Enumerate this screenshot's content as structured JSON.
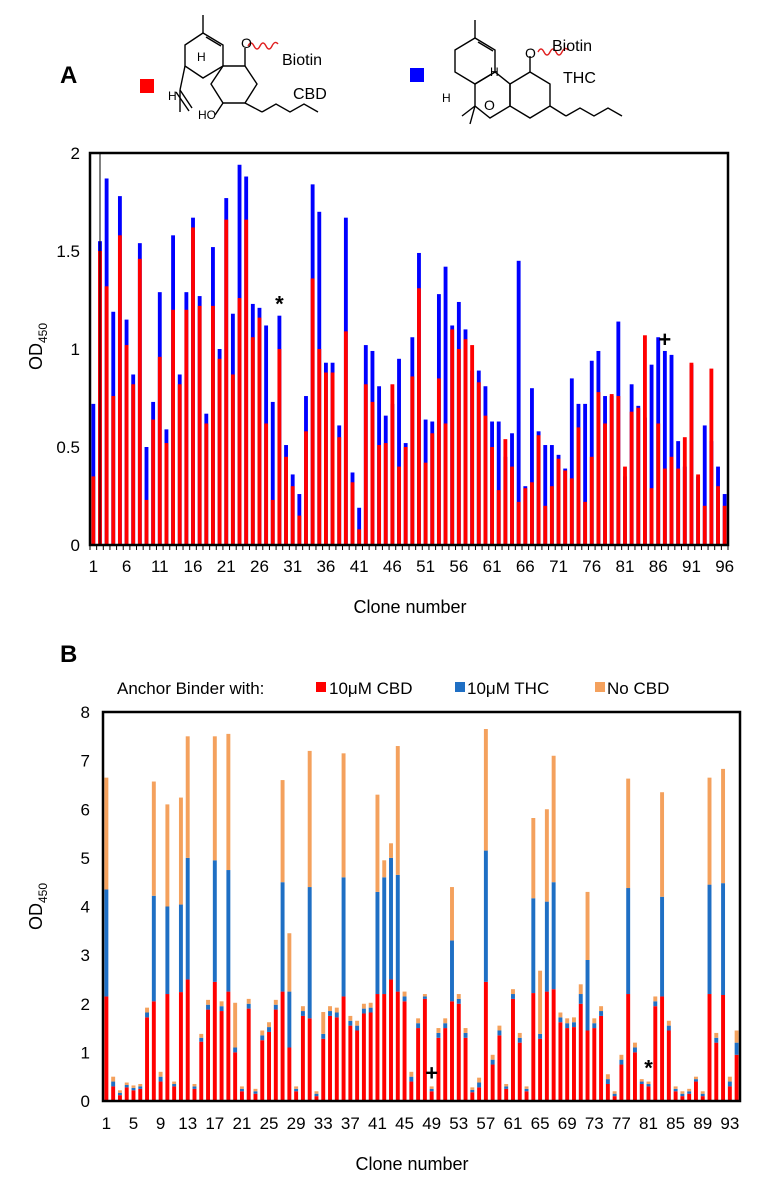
{
  "panel_a": {
    "label": "A",
    "structures": [
      {
        "name": "CBD",
        "tag": "Biotin",
        "color": "#ff0000"
      },
      {
        "name": "THC",
        "tag": "Biotin",
        "color": "#0000ff"
      }
    ],
    "atoms": {
      "o": "O",
      "ho": "HO",
      "h": "H"
    }
  },
  "panel_b": {
    "label": "B",
    "legend_title": "Anchor Binder with:",
    "markers": {
      "star": "*",
      "plus": "+"
    }
  },
  "chart_data": [
    {
      "type": "bar",
      "panel": "A",
      "title": "",
      "xlabel": "Clone number",
      "ylabel": "OD",
      "ylabel_sub": "450",
      "ylim": [
        0,
        2
      ],
      "yticks": [
        "0",
        "0.5",
        "1",
        "1.5",
        "2"
      ],
      "xticks": [
        "1",
        "6",
        "11",
        "16",
        "21",
        "26",
        "31",
        "36",
        "41",
        "46",
        "51",
        "56",
        "61",
        "66",
        "71",
        "76",
        "81",
        "86",
        "91",
        "96"
      ],
      "colors": {
        "CBD": "#ff0000",
        "THC": "#0000ff"
      },
      "annotations": [
        {
          "text": "*",
          "clone": 29
        },
        {
          "text": "+",
          "clone": 87
        }
      ],
      "cbd": [
        0.35,
        1.5,
        1.32,
        0.76,
        1.58,
        1.02,
        0.82,
        1.46,
        0.23,
        0.64,
        0.96,
        0.52,
        1.2,
        0.82,
        1.2,
        1.62,
        1.22,
        0.62,
        1.22,
        0.95,
        1.66,
        0.87,
        1.26,
        1.66,
        1.06,
        1.16,
        0.62,
        0.23,
        1.0,
        0.45,
        0.3,
        0.15,
        0.58,
        1.36,
        1.0,
        0.88,
        0.88,
        0.55,
        1.09,
        0.32,
        0.08,
        0.82,
        0.73,
        0.51,
        0.52,
        0.82,
        0.4,
        0.5,
        0.86,
        1.31,
        0.42,
        0.57,
        0.85,
        0.62,
        1.1,
        1.0,
        1.05,
        1.02,
        0.83,
        0.66,
        0.5,
        0.28,
        0.54,
        0.4,
        0.22,
        0.29,
        0.32,
        0.56,
        0.2,
        0.3,
        0.44,
        0.38,
        0.34,
        0.6,
        0.22,
        0.45,
        0.78,
        0.62,
        0.77,
        0.76,
        0.4,
        0.68,
        0.7,
        1.07,
        0.29,
        0.62,
        0.39,
        0.45,
        0.39,
        0.55,
        0.93,
        0.36,
        0.2,
        0.9,
        0.3,
        0.2
      ],
      "thc": [
        0.72,
        1.55,
        1.87,
        1.19,
        1.78,
        1.15,
        0.87,
        1.54,
        0.5,
        0.73,
        1.29,
        0.59,
        1.58,
        0.87,
        1.29,
        1.67,
        1.27,
        0.67,
        1.52,
        1.0,
        1.77,
        1.18,
        1.94,
        1.88,
        1.23,
        1.21,
        1.12,
        0.73,
        1.17,
        0.51,
        0.36,
        0.26,
        0.76,
        1.84,
        1.7,
        0.93,
        0.93,
        0.61,
        1.67,
        0.37,
        0.19,
        1.02,
        0.99,
        0.81,
        0.66,
        0.72,
        0.95,
        0.52,
        1.06,
        1.49,
        0.64,
        0.63,
        1.28,
        1.42,
        1.12,
        1.24,
        1.1,
        0.89,
        0.89,
        0.81,
        0.63,
        0.63,
        0.45,
        0.57,
        1.45,
        0.3,
        0.8,
        0.58,
        0.51,
        0.51,
        0.46,
        0.39,
        0.85,
        0.72,
        0.72,
        0.94,
        0.99,
        0.76,
        0.76,
        1.14,
        0.35,
        0.82,
        0.71,
        0.65,
        0.92,
        1.06,
        0.99,
        0.97,
        0.53,
        0.4,
        0.92,
        0.35,
        0.61,
        0.53,
        0.4,
        0.26
      ]
    },
    {
      "type": "bar",
      "panel": "B",
      "title": "",
      "xlabel": "Clone number",
      "ylabel": "OD",
      "ylabel_sub": "450",
      "ylim": [
        0,
        8
      ],
      "yticks": [
        "0",
        "1",
        "2",
        "3",
        "4",
        "5",
        "6",
        "7",
        "8"
      ],
      "xticks": [
        "1",
        "5",
        "9",
        "13",
        "17",
        "21",
        "25",
        "29",
        "33",
        "37",
        "41",
        "45",
        "49",
        "53",
        "57",
        "61",
        "65",
        "69",
        "73",
        "77",
        "81",
        "85",
        "89",
        "93"
      ],
      "annotations": [
        {
          "text": "+",
          "clone": 49
        },
        {
          "text": "*",
          "clone": 81
        }
      ],
      "series": [
        {
          "name": "10μM CBD",
          "color": "#ff0000",
          "values": [
            2.15,
            0.3,
            0.12,
            0.28,
            0.22,
            0.25,
            1.72,
            2.05,
            0.4,
            2.2,
            0.3,
            2.24,
            2.5,
            0.25,
            1.22,
            1.88,
            2.45,
            1.85,
            2.25,
            1.0,
            0.2,
            1.9,
            0.15,
            1.25,
            1.42,
            1.88,
            2.25,
            1.1,
            0.2,
            1.75,
            1.7,
            0.1,
            1.28,
            1.75,
            1.72,
            2.15,
            1.55,
            1.45,
            1.8,
            1.82,
            2.2,
            2.2,
            2.5,
            2.25,
            2.05,
            0.4,
            1.5,
            2.1,
            0.2,
            1.3,
            1.5,
            2.05,
            2.0,
            1.3,
            0.18,
            0.28,
            2.45,
            0.75,
            1.35,
            0.25,
            2.1,
            1.2,
            0.2,
            2.22,
            1.28,
            2.25,
            2.3,
            1.62,
            1.5,
            1.52,
            2.0,
            1.45,
            1.5,
            1.75,
            0.35,
            0.1,
            0.75,
            2.2,
            1.0,
            0.35,
            0.3,
            1.95,
            2.15,
            1.45,
            0.2,
            0.1,
            0.15,
            0.4,
            0.1,
            2.2,
            1.2,
            2.18,
            0.3,
            0.95
          ]
        },
        {
          "name": "10μM THC",
          "color": "#1f6fc4",
          "values": [
            2.2,
            0.1,
            0.05,
            0.05,
            0.05,
            0.05,
            0.1,
            2.17,
            0.1,
            1.8,
            0.05,
            1.8,
            2.5,
            0.05,
            0.08,
            0.1,
            2.5,
            0.1,
            2.5,
            0.1,
            0.05,
            0.1,
            0.05,
            0.1,
            0.1,
            0.1,
            2.25,
            1.15,
            0.05,
            0.1,
            2.7,
            0.05,
            0.1,
            0.1,
            0.1,
            2.45,
            0.1,
            0.1,
            0.1,
            0.1,
            2.1,
            2.4,
            2.5,
            2.4,
            0.1,
            0.1,
            0.1,
            0.05,
            0.05,
            0.1,
            0.1,
            1.25,
            0.1,
            0.1,
            0.05,
            0.1,
            2.7,
            0.1,
            0.1,
            0.05,
            0.1,
            0.1,
            0.05,
            1.95,
            0.1,
            1.85,
            2.2,
            0.1,
            0.1,
            0.1,
            0.2,
            1.45,
            0.1,
            0.1,
            0.1,
            0.05,
            0.1,
            2.18,
            0.1,
            0.05,
            0.05,
            0.1,
            2.05,
            0.1,
            0.05,
            0.05,
            0.05,
            0.05,
            0.05,
            2.25,
            0.1,
            2.3,
            0.1,
            0.25
          ]
        },
        {
          "name": "No CBD",
          "color": "#f4a15d",
          "values": [
            2.3,
            0.1,
            0.05,
            0.05,
            0.05,
            0.05,
            0.1,
            2.35,
            0.1,
            2.1,
            0.05,
            2.2,
            2.5,
            0.05,
            0.08,
            0.1,
            2.55,
            0.1,
            2.8,
            0.92,
            0.05,
            0.1,
            0.05,
            0.1,
            0.1,
            0.1,
            2.1,
            1.2,
            0.05,
            0.1,
            2.8,
            0.05,
            0.45,
            0.1,
            0.1,
            2.55,
            0.1,
            0.1,
            0.1,
            0.1,
            2.0,
            0.35,
            0.3,
            2.65,
            0.1,
            0.1,
            0.1,
            0.05,
            0.05,
            0.1,
            0.1,
            1.1,
            0.1,
            0.1,
            0.05,
            0.1,
            2.5,
            0.1,
            0.1,
            0.05,
            0.1,
            0.1,
            0.05,
            1.65,
            1.3,
            1.9,
            2.6,
            0.1,
            0.1,
            0.1,
            0.2,
            1.4,
            0.1,
            0.1,
            0.1,
            0.05,
            0.1,
            2.25,
            0.1,
            0.05,
            0.05,
            0.1,
            2.15,
            0.1,
            0.05,
            0.05,
            0.05,
            0.05,
            0.05,
            2.2,
            0.1,
            2.35,
            0.1,
            0.25
          ]
        }
      ]
    }
  ]
}
